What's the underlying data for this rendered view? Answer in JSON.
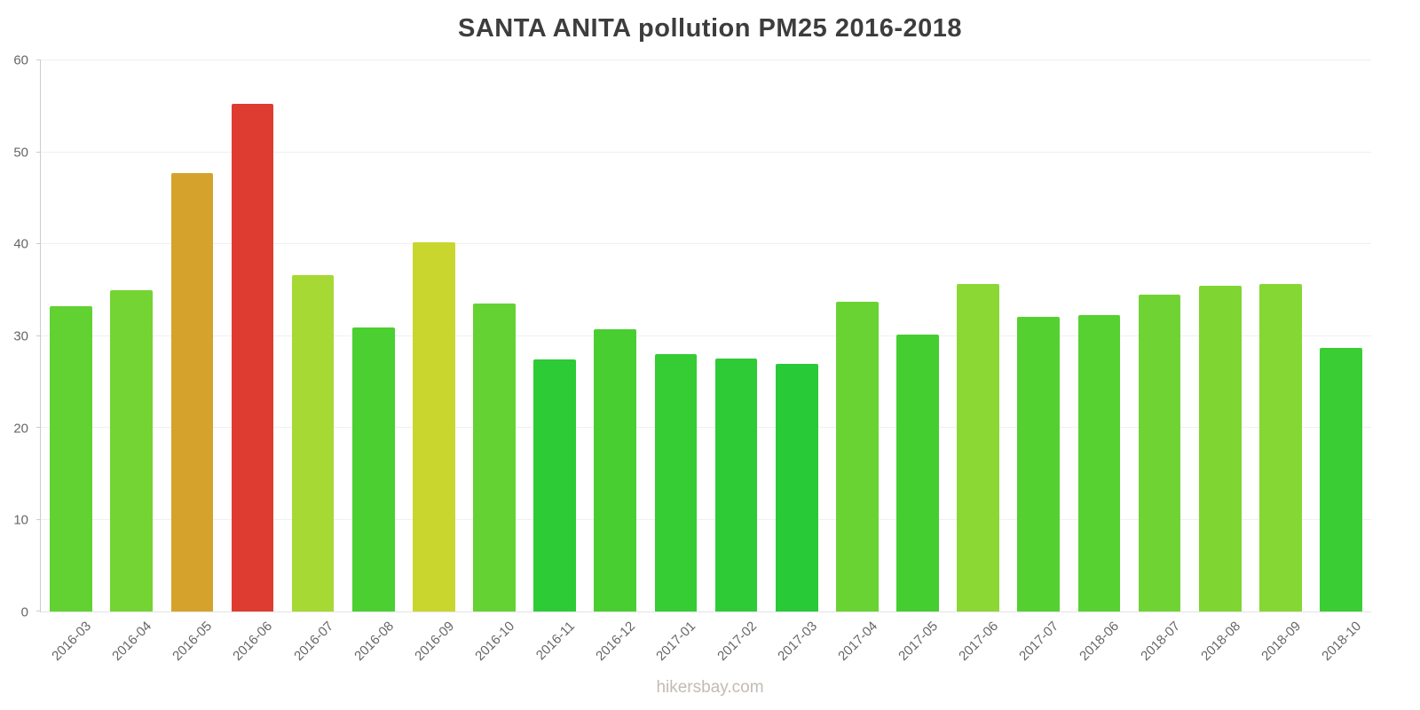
{
  "page": {
    "footer_label": "hikersbay.com"
  },
  "chart_data": {
    "type": "bar",
    "title": "SANTA ANITA pollution PM25 2016-2018",
    "xlabel": "",
    "ylabel": "",
    "ylim": [
      0,
      60
    ],
    "yticks": [
      0,
      10,
      20,
      30,
      40,
      50,
      60
    ],
    "grid": true,
    "legend_position": "none",
    "categories": [
      "2016-03",
      "2016-04",
      "2016-05",
      "2016-06",
      "2016-07",
      "2016-08",
      "2016-09",
      "2016-10",
      "2016-11",
      "2016-12",
      "2017-01",
      "2017-02",
      "2017-03",
      "2017-04",
      "2017-05",
      "2017-06",
      "2017-07",
      "2018-06",
      "2018-07",
      "2018-08",
      "2018-09",
      "2018-10"
    ],
    "values": [
      33.2,
      35.0,
      47.7,
      55.3,
      36.6,
      30.9,
      40.2,
      33.5,
      27.4,
      30.7,
      28.0,
      27.5,
      27.0,
      33.7,
      30.1,
      35.7,
      32.1,
      32.3,
      34.5,
      35.5,
      35.7,
      28.7
    ],
    "bar_colors": [
      "#62d233",
      "#74d433",
      "#d5a32b",
      "#de3b31",
      "#a6d933",
      "#4bcf31",
      "#c9d62e",
      "#65d233",
      "#2dcb36",
      "#49ce31",
      "#35cc34",
      "#2ecb36",
      "#28ca38",
      "#68d333",
      "#45ce30",
      "#8bd733",
      "#54d031",
      "#57d132",
      "#6fd433",
      "#7fd633",
      "#85d733",
      "#3acd34"
    ]
  }
}
